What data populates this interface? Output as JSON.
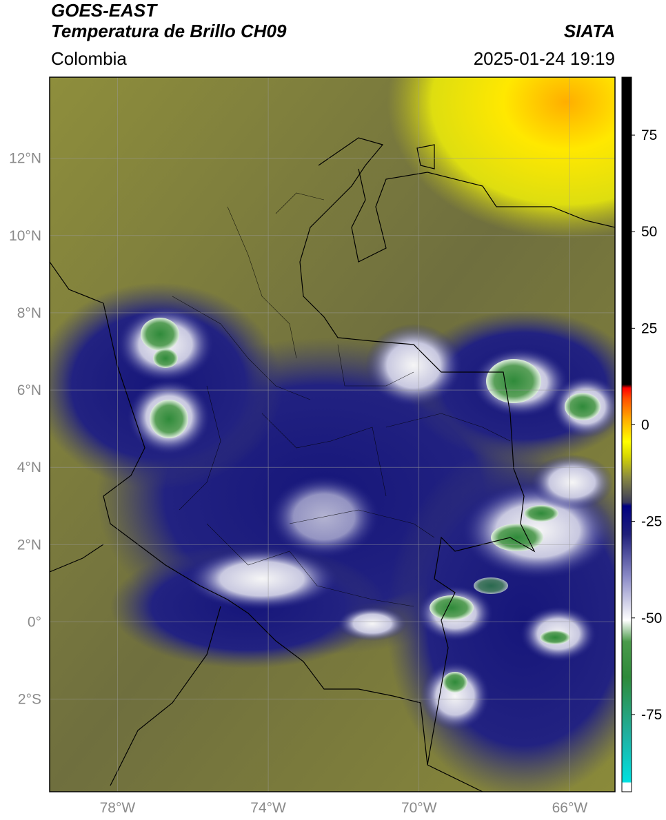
{
  "header": {
    "satellite": "GOES-EAST",
    "product": "Temperatura de Brillo CH09",
    "institution": "SIATA",
    "region": "Colombia",
    "datetime": "2025-01-24 19:19"
  },
  "map": {
    "lon_range": [
      -79.8,
      -64.8
    ],
    "lat_range": [
      -4.4,
      14.1
    ],
    "lat_ticks": [
      {
        "value": 12,
        "label": "12°N"
      },
      {
        "value": 10,
        "label": "10°N"
      },
      {
        "value": 8,
        "label": "8°N"
      },
      {
        "value": 6,
        "label": "6°N"
      },
      {
        "value": 4,
        "label": "4°N"
      },
      {
        "value": 2,
        "label": "2°N"
      },
      {
        "value": 0,
        "label": "0°"
      },
      {
        "value": -2,
        "label": "2°S"
      }
    ],
    "lon_ticks": [
      {
        "value": -78,
        "label": "78°W"
      },
      {
        "value": -74,
        "label": "74°W"
      },
      {
        "value": -70,
        "label": "70°W"
      },
      {
        "value": -66,
        "label": "66°W"
      }
    ],
    "gridlines": true,
    "colors": {
      "background_olive": "#8b8b3a",
      "warm_yellow": "#e8e800",
      "cold_navy": "#1a1a7a",
      "very_cold_white": "#f4f4f4",
      "coldest_green": "#3d8a3d"
    }
  },
  "colorbar": {
    "range": [
      -95,
      90
    ],
    "ticks": [
      {
        "value": 75,
        "label": "75"
      },
      {
        "value": 50,
        "label": "50"
      },
      {
        "value": 25,
        "label": "25"
      },
      {
        "value": 0,
        "label": "0"
      },
      {
        "value": -25,
        "label": "-25"
      },
      {
        "value": -50,
        "label": "-50"
      },
      {
        "value": -75,
        "label": "-75"
      }
    ]
  }
}
